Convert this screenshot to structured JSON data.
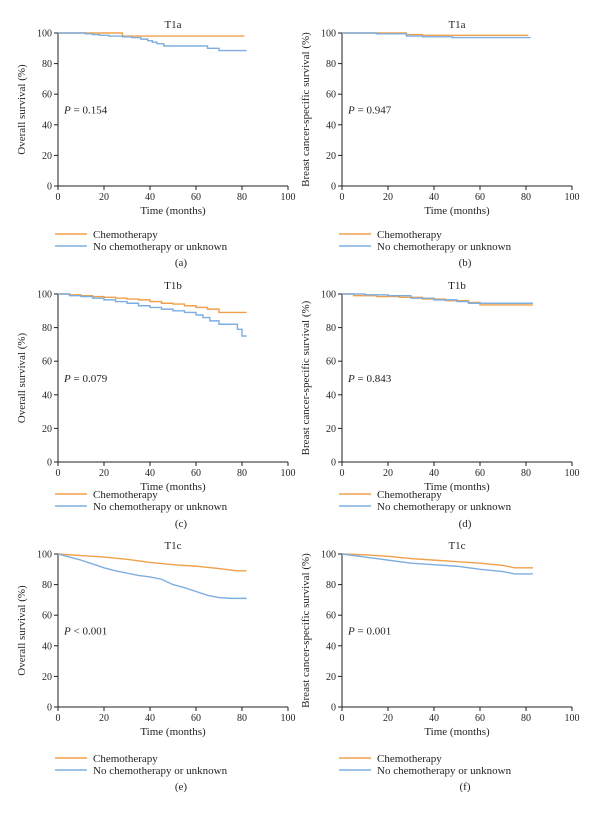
{
  "colors": {
    "chemotherapy": "#f0a04b",
    "no_chemotherapy": "#7eaee0",
    "axis": "#231f20"
  },
  "chart_data": [
    {
      "type": "line",
      "panel_label": "(a)",
      "title": "T1a",
      "xlabel": "Time (months)",
      "ylabel": "Overall survival (%)",
      "xlim": [
        0,
        100
      ],
      "ylim": [
        0,
        100
      ],
      "xticks": [
        0,
        20,
        40,
        60,
        80,
        100
      ],
      "yticks": [
        0,
        20,
        40,
        60,
        80,
        100
      ],
      "pvalue_text": "= 0.154",
      "legend_position": "bottom",
      "series": [
        {
          "name": "Chemotherapy",
          "step": true,
          "x": [
            0,
            28,
            81
          ],
          "y": [
            100,
            98,
            98
          ]
        },
        {
          "name": "No chemotherapy or unknown",
          "step": true,
          "x": [
            0,
            12,
            15,
            18,
            22,
            28,
            32,
            36,
            39,
            41,
            43,
            46,
            58,
            65,
            70,
            82
          ],
          "y": [
            100,
            99.5,
            99,
            98.5,
            98,
            97.5,
            97,
            96,
            95,
            94,
            93,
            91.5,
            91.5,
            90,
            88.5,
            88.5
          ]
        }
      ]
    },
    {
      "type": "line",
      "panel_label": "(b)",
      "title": "T1a",
      "xlabel": "Time (months)",
      "ylabel": "Breast cancer-specific survival (%)",
      "xlim": [
        0,
        100
      ],
      "ylim": [
        0,
        100
      ],
      "xticks": [
        0,
        20,
        40,
        60,
        80,
        100
      ],
      "yticks": [
        0,
        20,
        40,
        60,
        80,
        100
      ],
      "pvalue_text": "= 0.947",
      "legend_position": "bottom",
      "series": [
        {
          "name": "Chemotherapy",
          "step": true,
          "x": [
            0,
            28,
            35,
            81
          ],
          "y": [
            100,
            99,
            98.5,
            98.5
          ]
        },
        {
          "name": "No chemotherapy or unknown",
          "step": true,
          "x": [
            0,
            15,
            28,
            35,
            48,
            82
          ],
          "y": [
            100,
            99.5,
            98,
            97.5,
            97,
            97
          ]
        }
      ]
    },
    {
      "type": "line",
      "panel_label": "(c)",
      "title": "T1b",
      "xlabel": "Time (months)",
      "ylabel": "Overall survival (%)",
      "xlim": [
        0,
        100
      ],
      "ylim": [
        0,
        100
      ],
      "xticks": [
        0,
        20,
        40,
        60,
        80,
        100
      ],
      "yticks": [
        0,
        20,
        40,
        60,
        80,
        100
      ],
      "pvalue_text": "= 0.079",
      "legend_position": "bottom",
      "series": [
        {
          "name": "Chemotherapy",
          "step": true,
          "x": [
            0,
            5,
            10,
            15,
            20,
            25,
            30,
            35,
            40,
            45,
            50,
            55,
            60,
            65,
            70,
            82
          ],
          "y": [
            100,
            99.5,
            99,
            98.5,
            98,
            97.5,
            97,
            96.5,
            95.5,
            94.5,
            94,
            93,
            92,
            91,
            89,
            89
          ]
        },
        {
          "name": "No chemotherapy or unknown",
          "step": true,
          "x": [
            0,
            5,
            10,
            15,
            20,
            25,
            30,
            35,
            40,
            45,
            50,
            55,
            60,
            63,
            66,
            70,
            75,
            78,
            80,
            82
          ],
          "y": [
            100,
            99,
            98.5,
            97.5,
            96.5,
            95.5,
            94.5,
            93,
            92,
            91,
            90,
            89,
            87.5,
            86,
            84,
            82,
            82,
            79,
            75,
            75
          ]
        }
      ]
    },
    {
      "type": "line",
      "panel_label": "(d)",
      "title": "T1b",
      "xlabel": "Time (months)",
      "ylabel": "Breast cancer-specific survival (%)",
      "xlim": [
        0,
        100
      ],
      "ylim": [
        0,
        100
      ],
      "xticks": [
        0,
        20,
        40,
        60,
        80,
        100
      ],
      "yticks": [
        0,
        20,
        40,
        60,
        80,
        100
      ],
      "pvalue_text": "= 0.843",
      "legend_position": "bottom",
      "series": [
        {
          "name": "Chemotherapy",
          "step": true,
          "x": [
            0,
            5,
            15,
            25,
            35,
            45,
            55,
            60,
            83
          ],
          "y": [
            100,
            99,
            98.5,
            98,
            97,
            96,
            95,
            93.5,
            93.5
          ]
        },
        {
          "name": "No chemotherapy or unknown",
          "step": true,
          "x": [
            0,
            10,
            20,
            30,
            40,
            50,
            55,
            83
          ],
          "y": [
            100,
            99.5,
            99,
            97.5,
            96.5,
            95.5,
            94.5,
            94.5
          ]
        }
      ]
    },
    {
      "type": "line",
      "panel_label": "(e)",
      "title": "T1c",
      "xlabel": "Time (months)",
      "ylabel": "Overall survival (%)",
      "xlim": [
        0,
        100
      ],
      "ylim": [
        0,
        100
      ],
      "xticks": [
        0,
        20,
        40,
        60,
        80,
        100
      ],
      "yticks": [
        0,
        20,
        40,
        60,
        80,
        100
      ],
      "pvalue_text": "< 0.001",
      "legend_position": "bottom",
      "series": [
        {
          "name": "Chemotherapy",
          "step": false,
          "x": [
            0,
            10,
            20,
            30,
            40,
            50,
            60,
            70,
            78,
            82
          ],
          "y": [
            100,
            99,
            98,
            96.5,
            94.5,
            93,
            92,
            90.5,
            89,
            89
          ]
        },
        {
          "name": "No chemotherapy or unknown",
          "step": false,
          "x": [
            0,
            5,
            10,
            15,
            20,
            25,
            30,
            35,
            40,
            45,
            50,
            55,
            60,
            65,
            70,
            75,
            82
          ],
          "y": [
            100,
            98,
            96,
            93.5,
            91,
            89,
            87.5,
            86,
            85,
            83.5,
            80,
            78,
            75.5,
            73,
            71.5,
            71,
            71
          ]
        }
      ]
    },
    {
      "type": "line",
      "panel_label": "(f)",
      "title": "T1c",
      "xlabel": "Time (months)",
      "ylabel": "Breast cancer-specific survival (%)",
      "xlim": [
        0,
        100
      ],
      "ylim": [
        0,
        100
      ],
      "xticks": [
        0,
        20,
        40,
        60,
        80,
        100
      ],
      "yticks": [
        0,
        20,
        40,
        60,
        80,
        100
      ],
      "pvalue_text": "= 0.001",
      "legend_position": "bottom",
      "series": [
        {
          "name": "Chemotherapy",
          "step": false,
          "x": [
            0,
            10,
            20,
            30,
            40,
            50,
            60,
            70,
            75,
            83
          ],
          "y": [
            100,
            99.5,
            98.5,
            97,
            96,
            95,
            94,
            92.5,
            91,
            91
          ]
        },
        {
          "name": "No chemotherapy or unknown",
          "step": false,
          "x": [
            0,
            10,
            20,
            30,
            40,
            50,
            60,
            70,
            75,
            83
          ],
          "y": [
            100,
            98,
            96,
            94,
            93,
            92,
            90,
            88.5,
            87,
            87
          ]
        }
      ]
    }
  ]
}
